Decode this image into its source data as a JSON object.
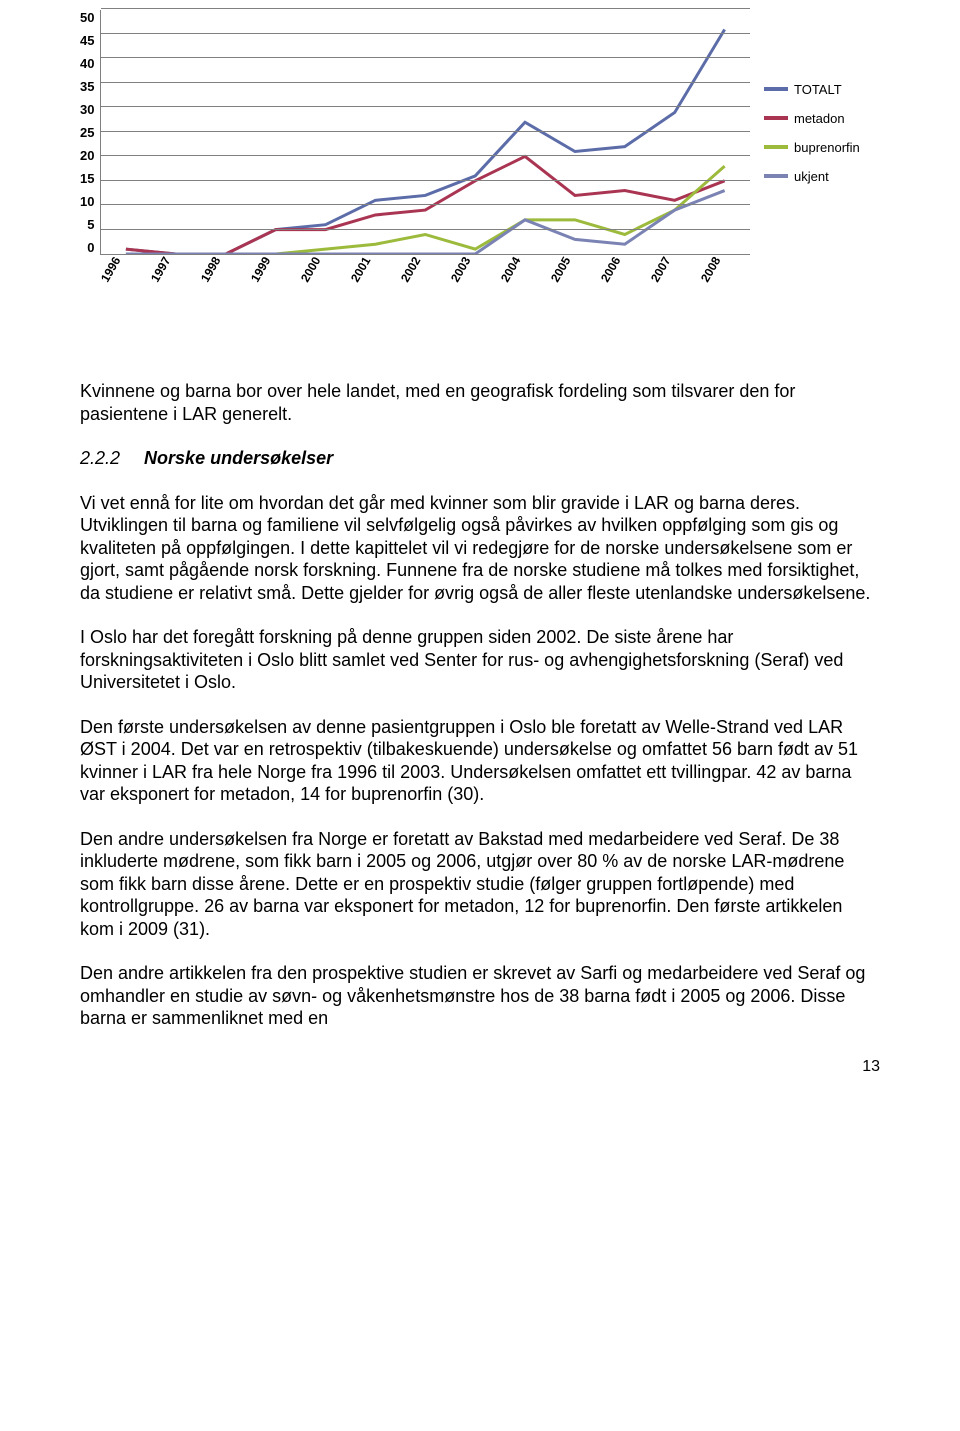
{
  "chart": {
    "type": "line",
    "ylim": [
      0,
      50
    ],
    "ytick_step": 5,
    "yticks": [
      "50",
      "45",
      "40",
      "35",
      "30",
      "25",
      "20",
      "15",
      "10",
      "5",
      "0"
    ],
    "categories": [
      "1996",
      "1997",
      "1998",
      "1999",
      "2000",
      "2001",
      "2002",
      "2003",
      "2004",
      "2005",
      "2006",
      "2007",
      "2008"
    ],
    "grid_color": "#808080",
    "background_color": "#ffffff",
    "line_width": 3,
    "x_label_fontsize": 12,
    "y_label_fontsize": 13,
    "series": [
      {
        "name": "TOTALT",
        "color": "#5b6ca8",
        "values": [
          1,
          0,
          0,
          5,
          6,
          11,
          12,
          16,
          27,
          21,
          22,
          29,
          46
        ]
      },
      {
        "name": "metadon",
        "color": "#aa3552",
        "values": [
          1,
          0,
          0,
          5,
          5,
          8,
          9,
          15,
          20,
          12,
          13,
          11,
          15
        ]
      },
      {
        "name": "buprenorfin",
        "color": "#9cba3c",
        "values": [
          0,
          0,
          0,
          0,
          1,
          2,
          4,
          1,
          7,
          7,
          4,
          9,
          18
        ]
      },
      {
        "name": "ukjent",
        "color": "#7a83b3",
        "values": [
          0,
          0,
          0,
          0,
          0,
          0,
          0,
          0,
          7,
          3,
          2,
          9,
          13
        ]
      }
    ],
    "legend_position": "right"
  },
  "paragraphs": {
    "p1": "Kvinnene og barna bor over hele landet, med en geografisk fordeling som tilsvarer den for pasientene i LAR generelt.",
    "heading_num": "2.2.2",
    "heading_title": "Norske undersøkelser",
    "p2": "Vi vet ennå for lite om hvordan det går med kvinner som blir gravide i LAR og barna deres. Utviklingen til barna og familiene vil selvfølgelig også påvirkes av hvilken oppfølging som gis og kvaliteten på oppfølgingen. I dette kapittelet vil vi redegjøre for de norske undersøkelsene som er gjort, samt pågående norsk forskning. Funnene fra de norske studiene må tolkes med forsiktighet, da studiene er relativt små. Dette gjelder for øvrig også de aller fleste utenlandske undersøkelsene.",
    "p3": "I Oslo har det foregått forskning på denne gruppen siden 2002. De siste årene har forskningsaktiviteten i Oslo blitt samlet ved Senter for rus- og avhengighetsforskning (Seraf) ved Universitetet i Oslo.",
    "p4": "Den første undersøkelsen av denne pasientgruppen i Oslo ble foretatt av Welle-Strand ved LAR ØST i 2004. Det var en retrospektiv (tilbakeskuende) undersøkelse og omfattet 56 barn født av 51 kvinner i LAR fra hele Norge fra 1996 til 2003. Undersøkelsen omfattet ett tvillingpar. 42 av barna var eksponert for metadon, 14 for buprenorfin (30).",
    "p5": "Den andre undersøkelsen fra Norge er foretatt av Bakstad med medarbeidere ved Seraf. De 38 inkluderte mødrene, som fikk barn i 2005 og 2006, utgjør over 80 % av de norske LAR-mødrene som fikk barn disse årene. Dette er en prospektiv studie (følger gruppen fortløpende) med kontrollgruppe. 26 av barna var eksponert for metadon, 12 for buprenorfin. Den første artikkelen kom i 2009 (31).",
    "p6": "Den andre artikkelen fra den prospektive studien er skrevet av Sarfi og medarbeidere ved Seraf og omhandler en studie av søvn- og våkenhetsmønstre hos de 38 barna født i 2005 og 2006. Disse barna er sammenliknet med en"
  },
  "page_number": "13"
}
